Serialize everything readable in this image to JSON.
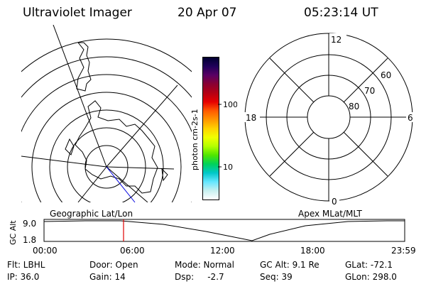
{
  "header": {
    "instrument": "Ultraviolet Imager",
    "date": "20 Apr 07",
    "time": "05:23:14 UT"
  },
  "colorbar": {
    "label": "photon cm-2s-1",
    "ticks": [
      "100",
      "10"
    ],
    "colors": [
      "#000030",
      "#20005a",
      "#5a0064",
      "#8a0032",
      "#b40014",
      "#e60000",
      "#ff5a00",
      "#ff9600",
      "#ffd200",
      "#f0ff00",
      "#b4ff00",
      "#50e600",
      "#00d25a",
      "#00c8c8",
      "#64e6ff",
      "#c8f0f0",
      "#ffffff"
    ]
  },
  "right_plot": {
    "mlt_labels": {
      "top": "12",
      "left": "18",
      "right": "6",
      "bottom": "0"
    },
    "lat_labels": [
      "60",
      "70",
      "80"
    ]
  },
  "timeline": {
    "left_title": "Geographic Lat/Lon",
    "right_title": "Apex MLat/MLT",
    "y_axis_label": "GC Alt",
    "y_ticks": [
      "9.0",
      "1.8"
    ],
    "x_ticks": [
      "00:00",
      "06:00",
      "12:00",
      "18:00",
      "23:59"
    ],
    "marker_color": "#e00000"
  },
  "info": {
    "filter": "Flt: LBHL",
    "door": "Door: Open",
    "mode": "Mode: Normal",
    "gc_alt": "GC Alt: 9.1 Re",
    "glat": "GLat: -72.1",
    "ip": "IP: 36.0",
    "gain": "Gain: 14",
    "dsp": "Dsp:     -2.7",
    "seq": "Seq: 39",
    "glon": "GLon: 298.0"
  }
}
